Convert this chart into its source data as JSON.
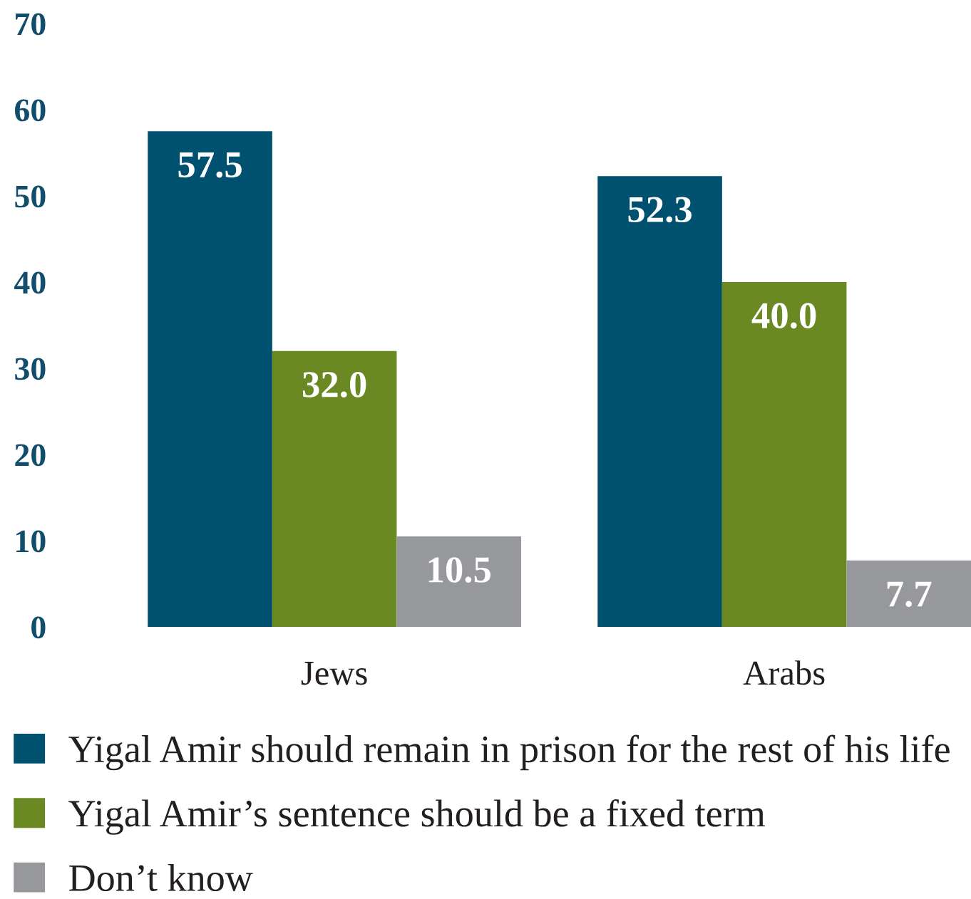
{
  "chart_data": {
    "type": "bar",
    "categories": [
      "Jews",
      "Arabs"
    ],
    "series": [
      {
        "name": "Yigal Amir should remain in prison for the rest of his life",
        "color": "#00506f",
        "values": [
          57.5,
          52.3
        ],
        "value_labels": [
          "57.5",
          "52.3"
        ]
      },
      {
        "name": "Yigal Amir’s sentence should be a fixed term",
        "color": "#6b8923",
        "values": [
          32.0,
          40.0
        ],
        "value_labels": [
          "32.0",
          "40.0"
        ]
      },
      {
        "name": "Don’t know",
        "color": "#97989b",
        "values": [
          10.5,
          7.7
        ],
        "value_labels": [
          "10.5",
          "7.7"
        ]
      }
    ],
    "ylim": [
      0,
      70
    ],
    "yticks": [
      0,
      10,
      20,
      30,
      40,
      50,
      60,
      70
    ],
    "legend": "bottom"
  }
}
